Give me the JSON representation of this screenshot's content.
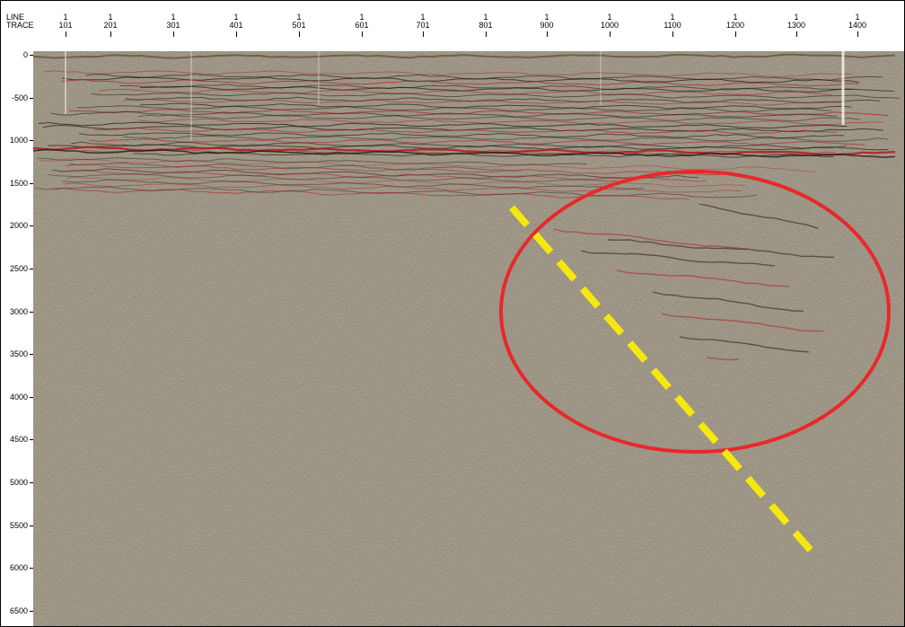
{
  "header": {
    "row1_label": "LINE",
    "row2_label": "TRACE"
  },
  "columns": [
    {
      "line": "1",
      "trace": "101"
    },
    {
      "line": "1",
      "trace": "201"
    },
    {
      "line": "1",
      "trace": "301"
    },
    {
      "line": "1",
      "trace": "401"
    },
    {
      "line": "1",
      "trace": "501"
    },
    {
      "line": "1",
      "trace": "601"
    },
    {
      "line": "1",
      "trace": "701"
    },
    {
      "line": "1",
      "trace": "801"
    },
    {
      "line": "1",
      "trace": "900"
    },
    {
      "line": "1",
      "trace": "1000"
    },
    {
      "line": "1",
      "trace": "1100"
    },
    {
      "line": "1",
      "trace": "1200"
    },
    {
      "line": "1",
      "trace": "1300"
    },
    {
      "line": "1",
      "trace": "1400"
    }
  ],
  "depth_labels": [
    "0",
    "-500",
    "1000",
    "1500",
    "2000",
    "2500",
    "3000",
    "3500",
    "4000",
    "4500",
    "5000",
    "5500",
    "6000",
    "6500"
  ],
  "annotations": {
    "ellipse": {
      "color": "#e8282a",
      "meaning": "highlighted anomaly region"
    },
    "dashed_line": {
      "color": "#f5e80e",
      "meaning": "interpreted fault trace"
    }
  },
  "colors": {
    "background": "#8f8777",
    "reflector_red": "#b02020",
    "reflector_dark": "#201a14"
  }
}
